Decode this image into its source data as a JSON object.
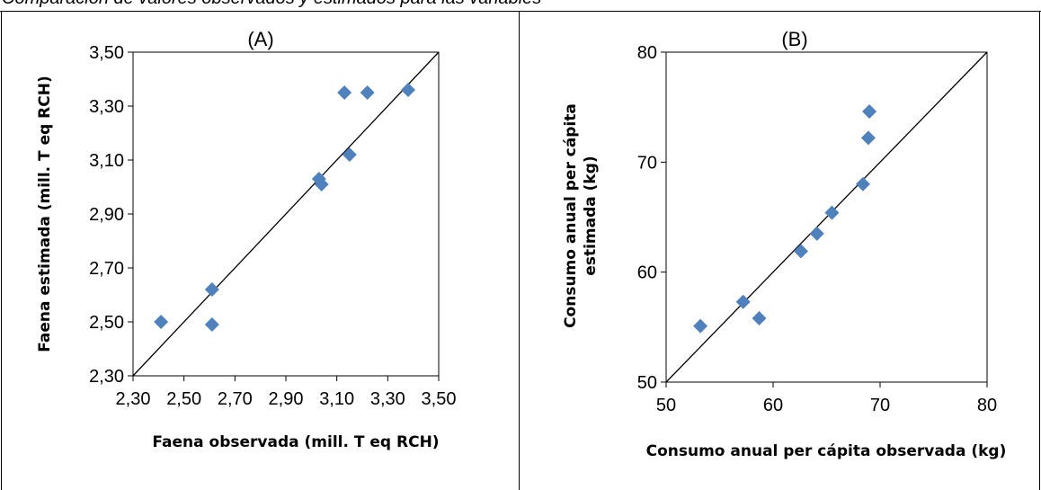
{
  "header": {
    "text": "Comparación de valores observados y estimados para las variables"
  },
  "chart_data": [
    {
      "type": "scatter",
      "title": "(A)",
      "xlabel": "Faena observada (mill. T eq RCH)",
      "ylabel": "Faena estimada (mill. T eq RCH)",
      "xlim": [
        2.3,
        3.5
      ],
      "ylim": [
        2.3,
        3.5
      ],
      "x_ticks": [
        "2,30",
        "2,50",
        "2,70",
        "2,90",
        "3,10",
        "3,30",
        "3,50"
      ],
      "y_ticks": [
        "2,30",
        "2,50",
        "2,70",
        "2,90",
        "3,10",
        "3,30",
        "3,50"
      ],
      "reference_line": "y = x",
      "marker": "diamond",
      "marker_color": "#4F81BD",
      "points": [
        {
          "x": 2.41,
          "y": 2.5
        },
        {
          "x": 2.61,
          "y": 2.62
        },
        {
          "x": 2.61,
          "y": 2.49
        },
        {
          "x": 3.03,
          "y": 3.03
        },
        {
          "x": 3.04,
          "y": 3.01
        },
        {
          "x": 3.13,
          "y": 3.35
        },
        {
          "x": 3.15,
          "y": 3.12
        },
        {
          "x": 3.22,
          "y": 3.35
        },
        {
          "x": 3.38,
          "y": 3.36
        }
      ]
    },
    {
      "type": "scatter",
      "title": "(B)",
      "xlabel": "Consumo anual per cápita observada (kg)",
      "ylabel_lines": [
        "Consumo anual per cápita",
        "estimada (kg)"
      ],
      "xlim": [
        50,
        80
      ],
      "ylim": [
        50,
        80
      ],
      "x_ticks": [
        "50",
        "60",
        "70",
        "80"
      ],
      "y_ticks": [
        "50",
        "60",
        "70",
        "80"
      ],
      "reference_line": "y = x",
      "marker": "diamond",
      "marker_color": "#4F81BD",
      "points": [
        {
          "x": 53.2,
          "y": 55.1
        },
        {
          "x": 57.2,
          "y": 57.3
        },
        {
          "x": 58.7,
          "y": 55.8
        },
        {
          "x": 62.6,
          "y": 61.9
        },
        {
          "x": 64.1,
          "y": 63.5
        },
        {
          "x": 65.5,
          "y": 65.4
        },
        {
          "x": 68.4,
          "y": 68.0
        },
        {
          "x": 68.9,
          "y": 72.2
        },
        {
          "x": 69.0,
          "y": 74.6
        }
      ]
    }
  ]
}
